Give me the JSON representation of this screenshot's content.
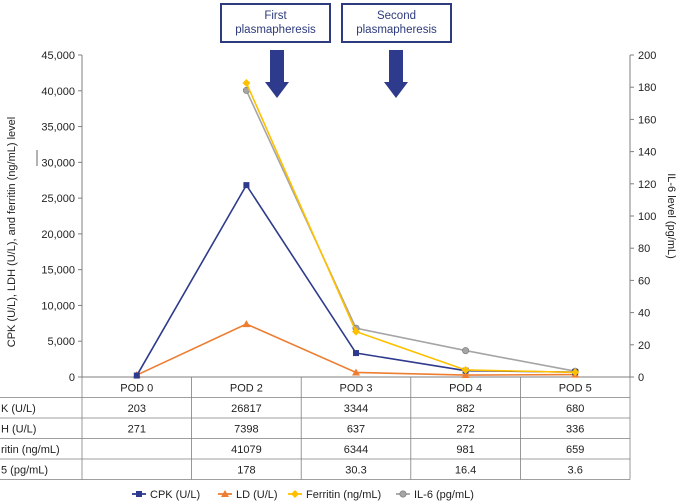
{
  "colors": {
    "cpk": "#2e3b8c",
    "ld": "#ed7d31",
    "ferritin": "#ffc000",
    "il6": "#a5a5a5",
    "arrow": "#2e3b8c",
    "axis": "#7f7f7f"
  },
  "annotations": [
    {
      "line1": "First",
      "line2": "plasmapheresis"
    },
    {
      "line1": "Second",
      "line2": "plasmapheresis"
    }
  ],
  "chart_data": {
    "type": "line",
    "categories": [
      "POD 0",
      "POD 2",
      "POD 3",
      "POD 4",
      "POD 5"
    ],
    "ylabel_left": "CPK (U/L), LDH (U/L), and ferritin (ng/mL) level",
    "ylabel_right": "IL-6 level (pg/mL)",
    "ylim_left": [
      0,
      45000
    ],
    "ylim_right": [
      0,
      200
    ],
    "yticks_left": [
      "0",
      "5,000",
      "10,000",
      "15,000",
      "20,000",
      "25,000",
      "30,000",
      "35,000",
      "40,000",
      "45,000"
    ],
    "yticks_right": [
      "0",
      "20",
      "40",
      "60",
      "80",
      "100",
      "120",
      "140",
      "160",
      "180",
      "200"
    ],
    "legend_position": "bottom",
    "series": [
      {
        "name": "CPK (U/L)",
        "row_label": "K (U/L)",
        "axis": "left",
        "marker": "square",
        "values": [
          203,
          26817,
          3344,
          882,
          680
        ],
        "display": [
          "203",
          "26817",
          "3344",
          "882",
          "680"
        ]
      },
      {
        "name": "LD (U/L)",
        "row_label": "H (U/L)",
        "axis": "left",
        "marker": "triangle",
        "values": [
          271,
          7398,
          637,
          272,
          336
        ],
        "display": [
          "271",
          "7398",
          "637",
          "272",
          "336"
        ]
      },
      {
        "name": "Ferritin (ng/mL)",
        "row_label": "ritin (ng/mL)",
        "axis": "left",
        "marker": "diamond",
        "values": [
          null,
          41079,
          6344,
          981,
          659
        ],
        "display": [
          "",
          "41079",
          "6344",
          "981",
          "659"
        ]
      },
      {
        "name": "IL-6 (pg/mL)",
        "row_label": "5 (pg/mL)",
        "axis": "right",
        "marker": "circle",
        "values": [
          null,
          178,
          30.3,
          16.4,
          3.6
        ],
        "display": [
          "",
          "178",
          "30.3",
          "16.4",
          "3.6"
        ]
      }
    ]
  }
}
